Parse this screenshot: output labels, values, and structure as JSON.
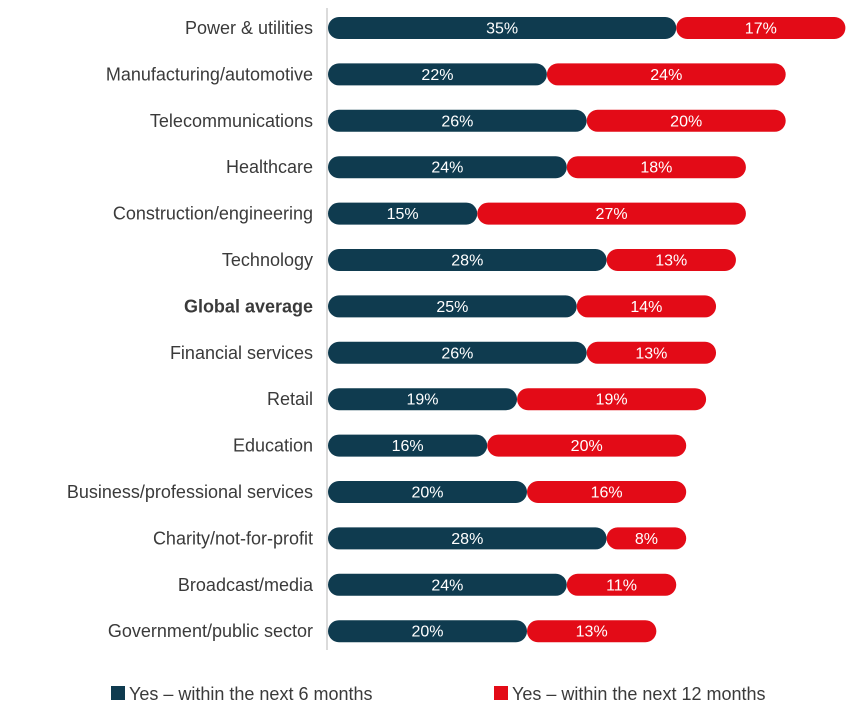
{
  "colors": {
    "series_6m": "#0f3b4f",
    "series_12m": "#e30b17",
    "axis": "#cfcfcf",
    "text": "#3a3a3a"
  },
  "chart_data": {
    "type": "bar",
    "orientation": "horizontal",
    "stacked": true,
    "categories": [
      "Power & utilities",
      "Manufacturing/automotive",
      "Telecommunications",
      "Healthcare",
      "Construction/engineering",
      "Technology",
      "Global average",
      "Financial services",
      "Retail",
      "Education",
      "Business/professional services",
      "Charity/not-for-profit",
      "Broadcast/media",
      "Government/public sector"
    ],
    "emphasized_category": "Global average",
    "series": [
      {
        "name": "Yes – within the next 6 months",
        "values": [
          35,
          22,
          26,
          24,
          15,
          28,
          25,
          26,
          19,
          16,
          20,
          28,
          24,
          20
        ]
      },
      {
        "name": "Yes – within the next 12 months",
        "values": [
          17,
          24,
          20,
          18,
          27,
          13,
          14,
          13,
          19,
          20,
          16,
          8,
          11,
          13
        ]
      }
    ],
    "value_suffix": "%",
    "xlim": [
      0,
      55
    ],
    "grid": false,
    "legend_position": "bottom"
  }
}
